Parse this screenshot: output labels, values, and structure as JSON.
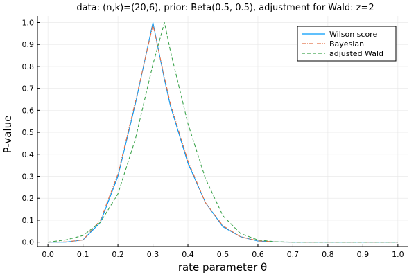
{
  "chart_data": {
    "type": "line",
    "title": "data: (n,k)=(20,6), prior: Beta(0.5, 0.5), adjustment for Wald: z=2",
    "xlabel": "rate parameter θ",
    "ylabel": "P-value",
    "xlim": [
      -0.03,
      1.03
    ],
    "ylim": [
      -0.02,
      1.03
    ],
    "xticks": [
      0.0,
      0.1,
      0.2,
      0.3,
      0.4,
      0.5,
      0.6,
      0.7,
      0.8,
      0.9,
      1.0
    ],
    "xtick_labels": [
      "0.0",
      "0.1",
      "0.2",
      "0.3",
      "0.4",
      "0.5",
      "0.6",
      "0.7",
      "0.8",
      "0.9",
      "1.0"
    ],
    "yticks": [
      0.0,
      0.1,
      0.2,
      0.3,
      0.4,
      0.5,
      0.6,
      0.7,
      0.8,
      0.9,
      1.0
    ],
    "ytick_labels": [
      "0.0",
      "0.1",
      "0.2",
      "0.3",
      "0.4",
      "0.5",
      "0.6",
      "0.7",
      "0.8",
      "0.9",
      "1.0"
    ],
    "grid": true,
    "legend": "top-right",
    "x": [
      0.0,
      0.05,
      0.1,
      0.15,
      0.2,
      0.25,
      0.3,
      0.333,
      0.35,
      0.4,
      0.45,
      0.5,
      0.55,
      0.6,
      0.65,
      0.7,
      0.8,
      0.9,
      1.0
    ],
    "series": [
      {
        "name": "Wilson score",
        "color": "#009af9",
        "dash": "solid",
        "values": [
          0.0,
          0.0,
          0.01,
          0.09,
          0.3,
          0.63,
          1.0,
          0.74,
          0.62,
          0.36,
          0.18,
          0.07,
          0.025,
          0.005,
          0.001,
          0.0,
          0.0,
          0.0,
          0.0
        ]
      },
      {
        "name": "Bayesian",
        "color": "#e26f46",
        "dash": "dashdot",
        "values": [
          0.0,
          0.001,
          0.01,
          0.1,
          0.31,
          0.64,
          0.99,
          0.75,
          0.63,
          0.37,
          0.18,
          0.075,
          0.025,
          0.006,
          0.001,
          0.0,
          0.0,
          0.0,
          0.0
        ]
      },
      {
        "name": "adjusted Wald",
        "color": "#3da44d",
        "dash": "dashed",
        "values": [
          0.0,
          0.01,
          0.03,
          0.09,
          0.22,
          0.47,
          0.81,
          1.0,
          0.87,
          0.54,
          0.29,
          0.12,
          0.04,
          0.01,
          0.002,
          0.0,
          0.0,
          0.0,
          0.0
        ]
      }
    ]
  }
}
